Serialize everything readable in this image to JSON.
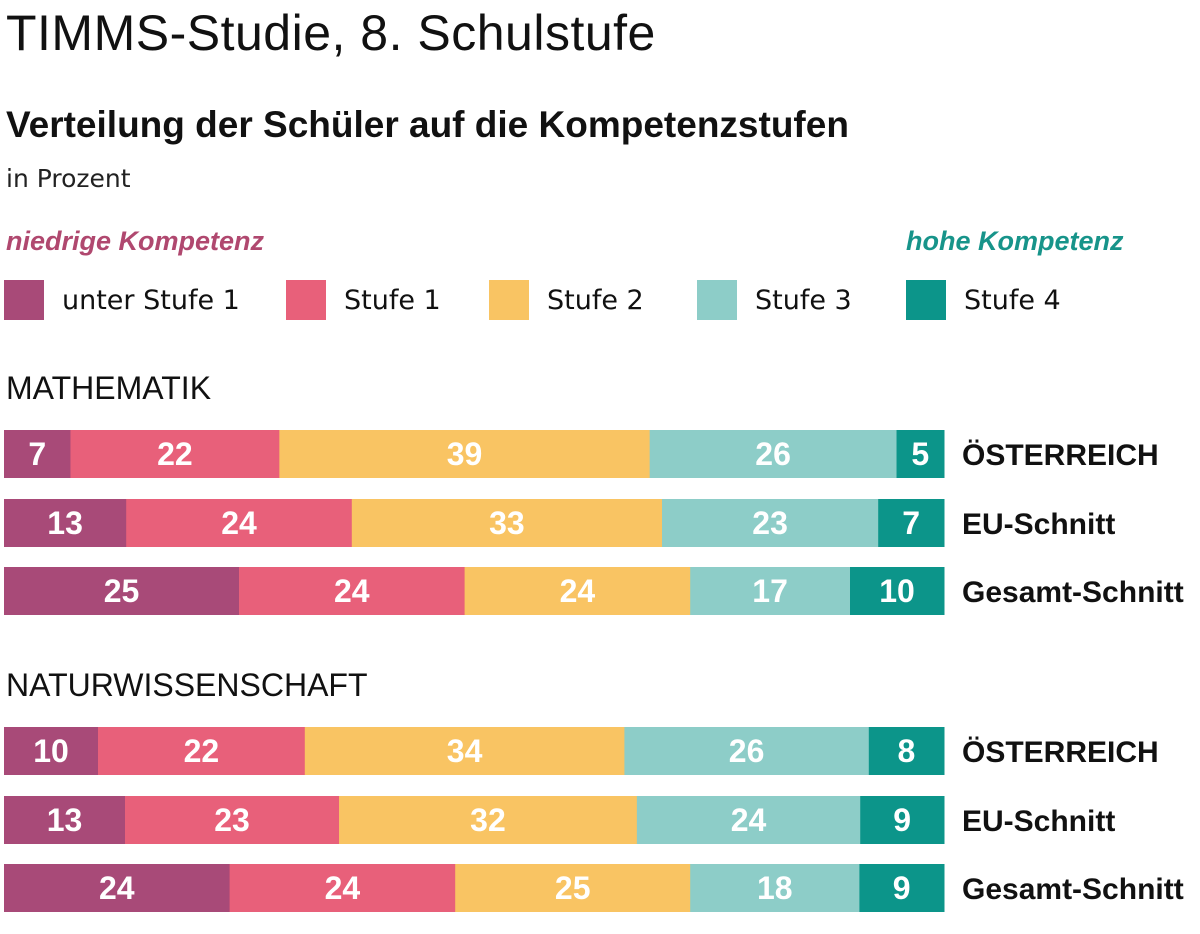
{
  "title": "TIMMS-Studie, 8. Schulstufe",
  "subtitle": "Verteilung der Schüler auf die Kompetenzstufen",
  "unit": "in Prozent",
  "legend": {
    "low_label": "niedrige Kompetenz",
    "high_label": "hohe Kompetenz",
    "items": [
      {
        "label": "unter Stufe 1",
        "color": "#a84a78"
      },
      {
        "label": "Stufe 1",
        "color": "#e8607a"
      },
      {
        "label": "Stufe 2",
        "color": "#f9c463"
      },
      {
        "label": "Stufe 3",
        "color": "#8dcdc8"
      },
      {
        "label": "Stufe 4",
        "color": "#0c958a"
      }
    ]
  },
  "colors": {
    "low_accent": "#b0486f",
    "high_accent": "#17948a"
  },
  "chart_data": [
    {
      "type": "bar",
      "stacked": true,
      "orientation": "horizontal",
      "title": "MATHEMATIK",
      "categories": [
        "ÖSTERREICH",
        "EU-Schnitt",
        "Gesamt-Schnitt"
      ],
      "series": [
        {
          "name": "unter Stufe 1",
          "values": [
            7,
            13,
            25
          ]
        },
        {
          "name": "Stufe 1",
          "values": [
            22,
            24,
            24
          ]
        },
        {
          "name": "Stufe 2",
          "values": [
            39,
            33,
            24
          ]
        },
        {
          "name": "Stufe 3",
          "values": [
            26,
            23,
            17
          ]
        },
        {
          "name": "Stufe 4",
          "values": [
            5,
            7,
            10
          ]
        }
      ]
    },
    {
      "type": "bar",
      "stacked": true,
      "orientation": "horizontal",
      "title": "NATURWISSENSCHAFT",
      "categories": [
        "ÖSTERREICH",
        "EU-Schnitt",
        "Gesamt-Schnitt"
      ],
      "series": [
        {
          "name": "unter Stufe 1",
          "values": [
            10,
            13,
            24
          ]
        },
        {
          "name": "Stufe 1",
          "values": [
            22,
            23,
            24
          ]
        },
        {
          "name": "Stufe 2",
          "values": [
            34,
            32,
            25
          ]
        },
        {
          "name": "Stufe 3",
          "values": [
            26,
            24,
            18
          ]
        },
        {
          "name": "Stufe 4",
          "values": [
            8,
            9,
            9
          ]
        }
      ]
    }
  ]
}
